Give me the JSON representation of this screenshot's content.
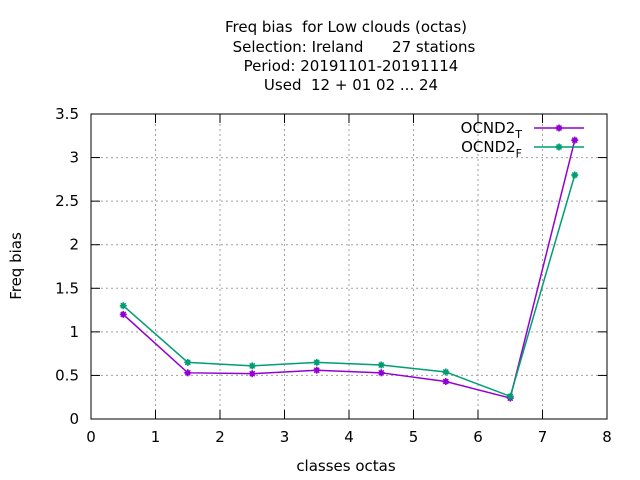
{
  "chart_data": {
    "type": "line",
    "title_lines": [
      "Freq bias  for Low clouds (octas)",
      "Selection: Ireland      27 stations",
      "Period: 20191101-20191114",
      "Used  12 + 01 02 ... 24"
    ],
    "xlabel": "classes octas",
    "ylabel": "Freq bias",
    "xlim": [
      0,
      8
    ],
    "ylim": [
      0,
      3.5
    ],
    "xticks": [
      "0",
      "1",
      "2",
      "3",
      "4",
      "5",
      "6",
      "7",
      "8"
    ],
    "yticks": [
      "0",
      "0.5",
      "1",
      "1.5",
      "2",
      "2.5",
      "3",
      "3.5"
    ],
    "grid": true,
    "legend_position": "top-right",
    "x": [
      0.5,
      1.5,
      2.5,
      3.5,
      4.5,
      5.5,
      6.5,
      7.5
    ],
    "series": [
      {
        "name_base": "OCND2",
        "name_sub": "T",
        "color": "#9400d3",
        "values": [
          1.2,
          0.53,
          0.52,
          0.56,
          0.53,
          0.43,
          0.24,
          3.2
        ]
      },
      {
        "name_base": "OCND2",
        "name_sub": "F",
        "color": "#009e73",
        "values": [
          1.3,
          0.65,
          0.61,
          0.65,
          0.62,
          0.54,
          0.26,
          2.8
        ]
      }
    ]
  }
}
